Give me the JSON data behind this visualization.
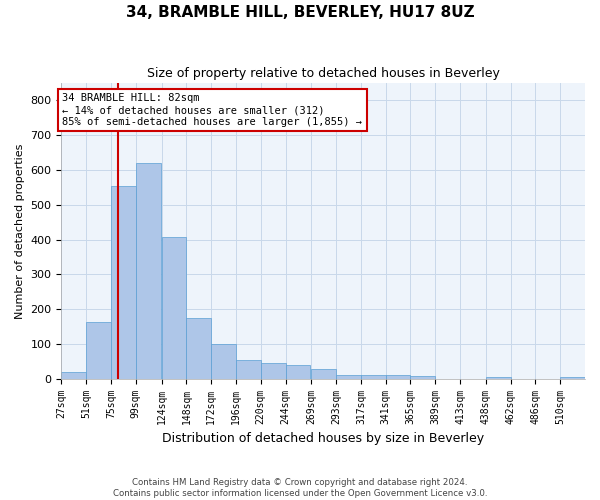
{
  "title": "34, BRAMBLE HILL, BEVERLEY, HU17 8UZ",
  "subtitle": "Size of property relative to detached houses in Beverley",
  "xlabel": "Distribution of detached houses by size in Beverley",
  "ylabel": "Number of detached properties",
  "footnote1": "Contains HM Land Registry data © Crown copyright and database right 2024.",
  "footnote2": "Contains public sector information licensed under the Open Government Licence v3.0.",
  "bin_labels": [
    "27sqm",
    "51sqm",
    "75sqm",
    "99sqm",
    "124sqm",
    "148sqm",
    "172sqm",
    "196sqm",
    "220sqm",
    "244sqm",
    "269sqm",
    "293sqm",
    "317sqm",
    "341sqm",
    "365sqm",
    "389sqm",
    "413sqm",
    "438sqm",
    "462sqm",
    "486sqm",
    "510sqm"
  ],
  "bar_heights": [
    20,
    162,
    555,
    620,
    408,
    175,
    100,
    55,
    45,
    38,
    28,
    10,
    10,
    10,
    7,
    0,
    0,
    5,
    0,
    0,
    5
  ],
  "bin_edges": [
    27,
    51,
    75,
    99,
    124,
    148,
    172,
    196,
    220,
    244,
    269,
    293,
    317,
    341,
    365,
    389,
    413,
    438,
    462,
    486,
    510
  ],
  "bin_width": 24,
  "property_size": 82,
  "property_label": "34 BRAMBLE HILL: 82sqm",
  "annotation_line1": "← 14% of detached houses are smaller (312)",
  "annotation_line2": "85% of semi-detached houses are larger (1,855) →",
  "bar_color": "#aec6e8",
  "bar_edge_color": "#5a9fd4",
  "vline_color": "#cc0000",
  "annotation_box_edge": "#cc0000",
  "background_color": "#eef4fb",
  "grid_color": "#c8d8ea",
  "ylim": [
    0,
    850
  ],
  "yticks": [
    0,
    100,
    200,
    300,
    400,
    500,
    600,
    700,
    800
  ]
}
